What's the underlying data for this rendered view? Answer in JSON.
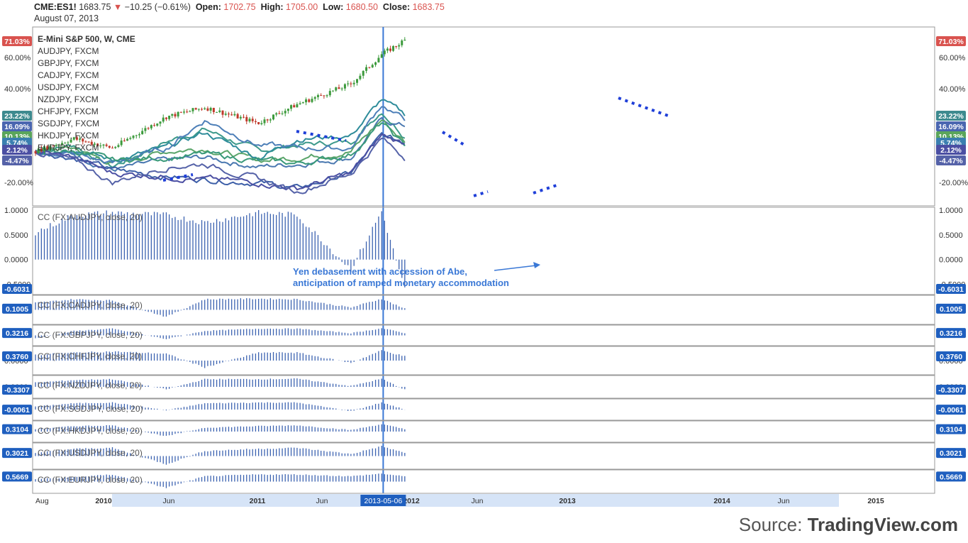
{
  "header": {
    "symbol": "CME:ES1!",
    "last": "1683.75",
    "change": "−10.25 (−0.61%)",
    "open_label": "Open:",
    "open": "1702.75",
    "high_label": "High:",
    "high": "1705.00",
    "low_label": "Low:",
    "low": "1680.50",
    "close_label": "Close:",
    "close": "1683.75",
    "date": "August 07, 2013"
  },
  "legend": [
    "E-Mini S&P 500, W, CME",
    "AUDJPY, FXCM",
    "GBPJPY, FXCM",
    "CADJPY, FXCM",
    "USDJPY, FXCM",
    "NZDJPY, FXCM",
    "CHFJPY, FXCM",
    "SGDJPY, FXCM",
    "HKDJPY, FXCM",
    "EURJPY, FXCM"
  ],
  "annotation": [
    "Yen debasement with accession of Abe,",
    "anticipation of ramped monetary accommodation"
  ],
  "source": {
    "prefix": "Source: ",
    "brand": "TradingView.com"
  },
  "colors": {
    "bull": "#3c9a3c",
    "bear": "#c0392b",
    "cc": "#3b62b0",
    "annotation": "#3a78d6",
    "vline": "#3a78d6",
    "tag_blue": "#1f5fbf"
  },
  "chart_data": [
    {
      "type": "line",
      "title": "E-Mini S&P 500, W, CME",
      "x": [
        "2009-08",
        "2010-01",
        "2010-06",
        "2011-01",
        "2011-06",
        "2012-01",
        "2012-06",
        "2013-01",
        "2013-05",
        "2013-08"
      ],
      "yscale": "percent",
      "yticks": [
        "60.00%",
        "40.00%",
        "-20.00%"
      ],
      "series": [
        {
          "name": "E-Mini S&P 500, W, CME",
          "values": [
            0,
            8,
            2,
            22,
            28,
            18,
            30,
            43,
            62,
            71
          ]
        },
        {
          "name": "AUDJPY, FXCM",
          "values": [
            0,
            4,
            -10,
            6,
            14,
            0,
            4,
            6,
            26,
            10
          ]
        },
        {
          "name": "GBPJPY, FXCM",
          "values": [
            0,
            -2,
            -12,
            -6,
            -4,
            -10,
            -8,
            -4,
            20,
            16
          ]
        },
        {
          "name": "CADJPY, FXCM",
          "values": [
            0,
            2,
            -8,
            0,
            2,
            -6,
            -4,
            0,
            20,
            6
          ]
        },
        {
          "name": "USDJPY, FXCM",
          "values": [
            0,
            -4,
            -12,
            -16,
            -18,
            -20,
            -24,
            -14,
            10,
            5
          ]
        },
        {
          "name": "NZDJPY, FXCM",
          "values": [
            0,
            2,
            -6,
            2,
            12,
            -4,
            8,
            10,
            33,
            23
          ]
        },
        {
          "name": "CHFJPY, FXCM",
          "values": [
            0,
            -2,
            -8,
            2,
            20,
            4,
            2,
            2,
            30,
            20
          ]
        },
        {
          "name": "SGDJPY, FXCM",
          "values": [
            0,
            0,
            -6,
            -4,
            -2,
            -6,
            -8,
            -2,
            18,
            3
          ]
        },
        {
          "name": "HKDJPY, FXCM",
          "values": [
            0,
            -4,
            -14,
            -16,
            -18,
            -20,
            -24,
            -14,
            10,
            5
          ]
        },
        {
          "name": "EURJPY, FXCM",
          "values": [
            0,
            -6,
            -20,
            -10,
            -8,
            -18,
            -26,
            -14,
            8,
            -4
          ]
        }
      ],
      "price_tags": [
        "71.03%",
        "23.22%",
        "16.09%",
        "10.13%",
        "5.74%",
        "2.12%",
        "-4.47%"
      ],
      "vline_date": "2013-05-06"
    },
    {
      "type": "bar",
      "title": "CC (FX:AUDJPY, close, 20)",
      "yticks": [
        "1.0000",
        "0.5000",
        "0.0000",
        "-0.5000"
      ],
      "ylim": [
        -0.65,
        1.0
      ],
      "last": "-0.6031",
      "x": [
        "2009-08",
        "2010-01",
        "2010-06",
        "2011-01",
        "2011-06",
        "2012-01",
        "2012-06",
        "2013-01",
        "2013-05",
        "2013-08"
      ],
      "values": [
        0.55,
        0.9,
        0.95,
        0.9,
        0.75,
        0.95,
        0.9,
        -0.2,
        0.98,
        -0.6
      ]
    },
    {
      "type": "bar",
      "title": "CC (FX:CADJPY, close, 20)",
      "last": "0.1005",
      "x": [
        "2009-08",
        "2010-01",
        "2010-06",
        "2011-01",
        "2011-06",
        "2012-01",
        "2012-06",
        "2013-01",
        "2013-05",
        "2013-08"
      ],
      "values": [
        0.6,
        0.9,
        0.8,
        -0.6,
        0.9,
        0.95,
        0.9,
        0.2,
        0.95,
        0.1
      ]
    },
    {
      "type": "bar",
      "title": "CC (FX:GBPJPY, close, 20)",
      "last": "0.3216",
      "x": [
        "2009-08",
        "2010-01",
        "2010-06",
        "2011-01",
        "2011-06",
        "2012-01",
        "2012-06",
        "2013-01",
        "2013-05",
        "2013-08"
      ],
      "values": [
        -0.4,
        0.6,
        0.9,
        -0.5,
        0.6,
        0.9,
        0.9,
        0.3,
        0.95,
        0.32
      ]
    },
    {
      "type": "bar",
      "title": "CC (FX:CHFJPY, close, 20)",
      "yticks": [
        "0.0000"
      ],
      "last": "0.3760",
      "x": [
        "2009-08",
        "2010-01",
        "2010-06",
        "2011-01",
        "2011-06",
        "2012-01",
        "2012-06",
        "2013-01",
        "2013-05",
        "2013-08"
      ],
      "values": [
        0.5,
        0.7,
        0.8,
        0.6,
        -0.6,
        0.7,
        0.7,
        -0.2,
        0.9,
        0.38
      ]
    },
    {
      "type": "bar",
      "title": "CC (FX:NZDJPY, close, 20)",
      "yticks": [
        "0.0000"
      ],
      "last": "-0.3307",
      "x": [
        "2009-08",
        "2010-01",
        "2010-06",
        "2011-01",
        "2011-06",
        "2012-01",
        "2012-06",
        "2013-01",
        "2013-05",
        "2013-08"
      ],
      "values": [
        0.5,
        0.8,
        0.9,
        -0.3,
        0.9,
        0.9,
        0.95,
        0.1,
        0.95,
        -0.33
      ]
    },
    {
      "type": "bar",
      "title": "CC (FX:SGDJPY, close, 20)",
      "last": "-0.0061",
      "x": [
        "2009-08",
        "2010-01",
        "2010-06",
        "2011-01",
        "2011-06",
        "2012-01",
        "2012-06",
        "2013-01",
        "2013-05",
        "2013-08"
      ],
      "values": [
        0.4,
        0.8,
        0.9,
        -0.1,
        0.8,
        0.9,
        0.9,
        -0.2,
        0.9,
        0.0
      ]
    },
    {
      "type": "bar",
      "title": "CC (FX:HKDJPY, close, 20)",
      "last": "0.3104",
      "x": [
        "2009-08",
        "2010-01",
        "2010-06",
        "2011-01",
        "2011-06",
        "2012-01",
        "2012-06",
        "2013-01",
        "2013-05",
        "2013-08"
      ],
      "values": [
        0.3,
        0.7,
        0.8,
        -0.6,
        0.5,
        0.7,
        0.8,
        0.2,
        0.95,
        0.31
      ]
    },
    {
      "type": "bar",
      "title": "CC (FX:USDJPY, close, 20)",
      "last": "0.3021",
      "x": [
        "2009-08",
        "2010-01",
        "2010-06",
        "2011-01",
        "2011-06",
        "2012-01",
        "2012-06",
        "2013-01",
        "2013-05",
        "2013-08"
      ],
      "values": [
        0.3,
        0.7,
        0.8,
        -0.8,
        0.5,
        0.7,
        0.8,
        0.2,
        0.95,
        0.3
      ]
    },
    {
      "type": "bar",
      "title": "CC (FX:EURJPY, close, 20)",
      "last": "0.5669",
      "x": [
        "2009-08",
        "2010-01",
        "2010-06",
        "2011-01",
        "2011-06",
        "2012-01",
        "2012-06",
        "2013-01",
        "2013-05",
        "2013-08"
      ],
      "values": [
        0.3,
        0.5,
        0.8,
        -0.7,
        0.6,
        0.8,
        0.8,
        0.6,
        0.9,
        0.57
      ]
    }
  ],
  "x_axis": {
    "labels": [
      "Aug",
      "2010",
      "Jun",
      "2011",
      "Jun",
      "2012",
      "Jun",
      "2013",
      "2013-05-06",
      "2014",
      "Jun",
      "2015"
    ]
  }
}
